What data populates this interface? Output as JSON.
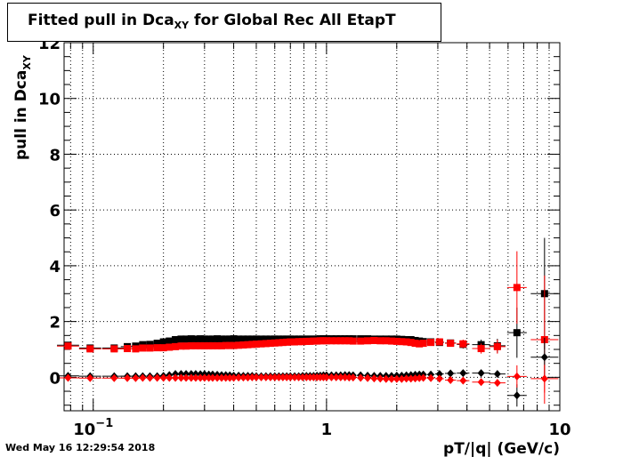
{
  "title": {
    "main": "Fitted pull in Dca",
    "sub": "XY",
    "rest": " for Global Rec All EtapT"
  },
  "timestamp": "Wed May 16 12:29:54 2018",
  "chart_data": {
    "type": "scatter",
    "title": "Fitted pull in Dca_XY for Global Rec All EtapT",
    "xlabel": "pT/|q| (GeV/c)",
    "ylabel": "pull in Dca",
    "ylabel_sub": "XY",
    "xscale": "log",
    "xlim": [
      0.075,
      10
    ],
    "ylim": [
      -1.2,
      12
    ],
    "grid": true,
    "x_tick_labels": [
      {
        "value": 0.1,
        "base": "10",
        "exp": "−1"
      },
      {
        "value": 1,
        "text": "1"
      },
      {
        "value": 10,
        "text": "10"
      }
    ],
    "y_ticks": [
      0,
      2,
      4,
      6,
      8,
      10,
      12
    ],
    "series": [
      {
        "marker": "square",
        "color": "#000000",
        "x": [
          0.078,
          0.097,
          0.123,
          0.14,
          0.152,
          0.163,
          0.175,
          0.188,
          0.2,
          0.212,
          0.225,
          0.238,
          0.25,
          0.263,
          0.275,
          0.288,
          0.3,
          0.313,
          0.325,
          0.34,
          0.355,
          0.37,
          0.385,
          0.4,
          0.42,
          0.44,
          0.46,
          0.48,
          0.5,
          0.525,
          0.55,
          0.575,
          0.6,
          0.625,
          0.65,
          0.675,
          0.7,
          0.73,
          0.76,
          0.79,
          0.82,
          0.85,
          0.88,
          0.91,
          0.94,
          0.97,
          1.0,
          1.05,
          1.1,
          1.15,
          1.2,
          1.25,
          1.3,
          1.4,
          1.5,
          1.6,
          1.7,
          1.8,
          1.9,
          2.0,
          2.1,
          2.2,
          2.3,
          2.4,
          2.5,
          2.6,
          2.8,
          3.05,
          3.4,
          3.85,
          4.6,
          5.4,
          6.55,
          8.6
        ],
        "y": [
          1.15,
          1.05,
          1.05,
          1.1,
          1.12,
          1.17,
          1.18,
          1.22,
          1.27,
          1.3,
          1.35,
          1.37,
          1.37,
          1.38,
          1.37,
          1.38,
          1.37,
          1.37,
          1.37,
          1.38,
          1.37,
          1.37,
          1.37,
          1.38,
          1.37,
          1.37,
          1.37,
          1.37,
          1.37,
          1.37,
          1.37,
          1.37,
          1.37,
          1.37,
          1.37,
          1.37,
          1.37,
          1.37,
          1.37,
          1.37,
          1.37,
          1.37,
          1.37,
          1.37,
          1.38,
          1.38,
          1.38,
          1.38,
          1.38,
          1.38,
          1.38,
          1.38,
          1.38,
          1.38,
          1.38,
          1.37,
          1.37,
          1.37,
          1.37,
          1.37,
          1.36,
          1.35,
          1.35,
          1.32,
          1.3,
          1.28,
          1.27,
          1.25,
          1.23,
          1.18,
          1.17,
          1.13,
          1.6,
          3.0
        ],
        "y_err": [
          0.05,
          0.05,
          0.04,
          0.04,
          0.04,
          0.04,
          0.04,
          0.04,
          0.04,
          0.04,
          0.04,
          0.04,
          0.04,
          0.04,
          0.04,
          0.04,
          0.04,
          0.04,
          0.04,
          0.04,
          0.04,
          0.04,
          0.04,
          0.04,
          0.04,
          0.04,
          0.04,
          0.04,
          0.04,
          0.04,
          0.04,
          0.04,
          0.04,
          0.04,
          0.04,
          0.04,
          0.04,
          0.04,
          0.04,
          0.04,
          0.04,
          0.04,
          0.04,
          0.04,
          0.04,
          0.04,
          0.04,
          0.04,
          0.04,
          0.04,
          0.04,
          0.04,
          0.04,
          0.04,
          0.04,
          0.05,
          0.05,
          0.05,
          0.05,
          0.06,
          0.06,
          0.06,
          0.07,
          0.07,
          0.08,
          0.08,
          0.09,
          0.1,
          0.12,
          0.15,
          0.18,
          0.25,
          0.9,
          2.0
        ]
      },
      {
        "marker": "square",
        "color": "#ff0000",
        "x": [
          0.078,
          0.097,
          0.123,
          0.14,
          0.152,
          0.163,
          0.175,
          0.188,
          0.2,
          0.212,
          0.225,
          0.238,
          0.25,
          0.263,
          0.275,
          0.288,
          0.3,
          0.313,
          0.325,
          0.34,
          0.355,
          0.37,
          0.385,
          0.4,
          0.42,
          0.44,
          0.46,
          0.48,
          0.5,
          0.525,
          0.55,
          0.575,
          0.6,
          0.625,
          0.65,
          0.675,
          0.7,
          0.73,
          0.76,
          0.79,
          0.82,
          0.85,
          0.88,
          0.91,
          0.94,
          0.97,
          1.0,
          1.05,
          1.1,
          1.15,
          1.2,
          1.25,
          1.3,
          1.4,
          1.5,
          1.6,
          1.7,
          1.8,
          1.9,
          2.0,
          2.1,
          2.2,
          2.3,
          2.4,
          2.5,
          2.6,
          2.8,
          3.05,
          3.4,
          3.85,
          4.6,
          5.4,
          6.55,
          8.6
        ],
        "y": [
          1.12,
          1.02,
          1.02,
          1.03,
          1.02,
          1.05,
          1.05,
          1.06,
          1.06,
          1.08,
          1.1,
          1.12,
          1.12,
          1.13,
          1.13,
          1.13,
          1.13,
          1.13,
          1.13,
          1.13,
          1.13,
          1.14,
          1.14,
          1.14,
          1.15,
          1.16,
          1.17,
          1.18,
          1.19,
          1.2,
          1.21,
          1.22,
          1.23,
          1.24,
          1.25,
          1.26,
          1.27,
          1.27,
          1.28,
          1.28,
          1.29,
          1.29,
          1.3,
          1.3,
          1.31,
          1.31,
          1.31,
          1.31,
          1.31,
          1.31,
          1.31,
          1.31,
          1.3,
          1.3,
          1.31,
          1.32,
          1.31,
          1.31,
          1.3,
          1.29,
          1.28,
          1.27,
          1.25,
          1.22,
          1.2,
          1.22,
          1.25,
          1.27,
          1.22,
          1.2,
          1.03,
          1.1,
          3.22,
          1.35
        ],
        "y_err": [
          0.05,
          0.05,
          0.04,
          0.04,
          0.04,
          0.04,
          0.04,
          0.04,
          0.04,
          0.04,
          0.04,
          0.04,
          0.04,
          0.04,
          0.04,
          0.04,
          0.04,
          0.04,
          0.04,
          0.04,
          0.04,
          0.04,
          0.04,
          0.04,
          0.04,
          0.04,
          0.04,
          0.04,
          0.04,
          0.04,
          0.04,
          0.04,
          0.04,
          0.04,
          0.04,
          0.04,
          0.04,
          0.04,
          0.04,
          0.04,
          0.04,
          0.04,
          0.04,
          0.04,
          0.04,
          0.04,
          0.04,
          0.04,
          0.04,
          0.04,
          0.04,
          0.04,
          0.04,
          0.04,
          0.04,
          0.05,
          0.05,
          0.05,
          0.05,
          0.06,
          0.06,
          0.06,
          0.07,
          0.07,
          0.08,
          0.08,
          0.09,
          0.1,
          0.12,
          0.15,
          0.18,
          0.25,
          1.3,
          2.3
        ]
      },
      {
        "marker": "diamond",
        "color": "#000000",
        "x": [
          0.078,
          0.097,
          0.123,
          0.14,
          0.152,
          0.163,
          0.175,
          0.188,
          0.2,
          0.212,
          0.225,
          0.238,
          0.25,
          0.263,
          0.275,
          0.288,
          0.3,
          0.313,
          0.325,
          0.34,
          0.355,
          0.37,
          0.385,
          0.4,
          0.42,
          0.44,
          0.46,
          0.48,
          0.5,
          0.525,
          0.55,
          0.575,
          0.6,
          0.625,
          0.65,
          0.675,
          0.7,
          0.73,
          0.76,
          0.79,
          0.82,
          0.85,
          0.88,
          0.91,
          0.94,
          0.97,
          1.0,
          1.05,
          1.1,
          1.15,
          1.2,
          1.25,
          1.3,
          1.4,
          1.5,
          1.6,
          1.7,
          1.8,
          1.9,
          2.0,
          2.1,
          2.2,
          2.3,
          2.4,
          2.5,
          2.6,
          2.8,
          3.05,
          3.4,
          3.85,
          4.6,
          5.4,
          6.55,
          8.6
        ],
        "y": [
          0.05,
          0.04,
          0.04,
          0.04,
          0.04,
          0.04,
          0.04,
          0.04,
          0.05,
          0.08,
          0.12,
          0.12,
          0.12,
          0.12,
          0.12,
          0.11,
          0.11,
          0.1,
          0.1,
          0.09,
          0.08,
          0.08,
          0.07,
          0.06,
          0.06,
          0.05,
          0.05,
          0.05,
          0.04,
          0.04,
          0.04,
          0.04,
          0.04,
          0.04,
          0.04,
          0.04,
          0.04,
          0.04,
          0.04,
          0.05,
          0.05,
          0.05,
          0.05,
          0.06,
          0.06,
          0.07,
          0.07,
          0.07,
          0.07,
          0.07,
          0.08,
          0.08,
          0.07,
          0.07,
          0.06,
          0.05,
          0.05,
          0.05,
          0.05,
          0.06,
          0.06,
          0.07,
          0.08,
          0.09,
          0.1,
          0.1,
          0.1,
          0.12,
          0.14,
          0.15,
          0.15,
          0.12,
          -0.65,
          0.72
        ],
        "y_err": [
          0.03,
          0.03,
          0.02,
          0.02,
          0.02,
          0.02,
          0.02,
          0.02,
          0.02,
          0.02,
          0.02,
          0.02,
          0.02,
          0.02,
          0.02,
          0.02,
          0.02,
          0.02,
          0.02,
          0.02,
          0.02,
          0.02,
          0.02,
          0.02,
          0.02,
          0.02,
          0.02,
          0.02,
          0.02,
          0.02,
          0.02,
          0.02,
          0.02,
          0.02,
          0.02,
          0.02,
          0.02,
          0.02,
          0.02,
          0.02,
          0.02,
          0.02,
          0.02,
          0.02,
          0.02,
          0.02,
          0.02,
          0.02,
          0.02,
          0.02,
          0.02,
          0.02,
          0.02,
          0.02,
          0.02,
          0.03,
          0.03,
          0.03,
          0.03,
          0.03,
          0.03,
          0.03,
          0.04,
          0.04,
          0.04,
          0.04,
          0.05,
          0.05,
          0.06,
          0.07,
          0.08,
          0.1,
          0.4,
          0.7
        ]
      },
      {
        "marker": "diamond",
        "color": "#ff0000",
        "x": [
          0.078,
          0.097,
          0.123,
          0.14,
          0.152,
          0.163,
          0.175,
          0.188,
          0.2,
          0.212,
          0.225,
          0.238,
          0.25,
          0.263,
          0.275,
          0.288,
          0.3,
          0.313,
          0.325,
          0.34,
          0.355,
          0.37,
          0.385,
          0.4,
          0.42,
          0.44,
          0.46,
          0.48,
          0.5,
          0.525,
          0.55,
          0.575,
          0.6,
          0.625,
          0.65,
          0.675,
          0.7,
          0.73,
          0.76,
          0.79,
          0.82,
          0.85,
          0.88,
          0.91,
          0.94,
          0.97,
          1.0,
          1.05,
          1.1,
          1.15,
          1.2,
          1.25,
          1.3,
          1.4,
          1.5,
          1.6,
          1.7,
          1.8,
          1.9,
          2.0,
          2.1,
          2.2,
          2.3,
          2.4,
          2.5,
          2.6,
          2.8,
          3.05,
          3.4,
          3.85,
          4.6,
          5.4,
          6.55,
          8.6
        ],
        "y": [
          -0.02,
          -0.03,
          -0.03,
          -0.03,
          -0.03,
          -0.02,
          -0.02,
          -0.02,
          -0.02,
          -0.02,
          -0.02,
          -0.02,
          -0.02,
          -0.02,
          -0.02,
          -0.02,
          -0.02,
          -0.02,
          -0.02,
          -0.02,
          -0.02,
          -0.02,
          -0.02,
          -0.02,
          -0.01,
          -0.01,
          -0.01,
          0.0,
          0.0,
          0.0,
          0.0,
          0.0,
          0.0,
          0.0,
          0.0,
          0.0,
          0.0,
          0.0,
          0.0,
          0.0,
          0.0,
          0.0,
          0.0,
          0.0,
          0.0,
          0.0,
          0.0,
          0.0,
          0.0,
          0.0,
          0.0,
          -0.01,
          -0.01,
          -0.02,
          -0.03,
          -0.04,
          -0.05,
          -0.06,
          -0.06,
          -0.06,
          -0.06,
          -0.05,
          -0.05,
          -0.04,
          -0.03,
          -0.02,
          -0.03,
          -0.05,
          -0.1,
          -0.12,
          -0.17,
          -0.2,
          0.03,
          -0.05
        ],
        "y_err": [
          0.03,
          0.03,
          0.02,
          0.02,
          0.02,
          0.02,
          0.02,
          0.02,
          0.02,
          0.02,
          0.02,
          0.02,
          0.02,
          0.02,
          0.02,
          0.02,
          0.02,
          0.02,
          0.02,
          0.02,
          0.02,
          0.02,
          0.02,
          0.02,
          0.02,
          0.02,
          0.02,
          0.02,
          0.02,
          0.02,
          0.02,
          0.02,
          0.02,
          0.02,
          0.02,
          0.02,
          0.02,
          0.02,
          0.02,
          0.02,
          0.02,
          0.02,
          0.02,
          0.02,
          0.02,
          0.02,
          0.02,
          0.02,
          0.02,
          0.02,
          0.02,
          0.02,
          0.02,
          0.02,
          0.02,
          0.03,
          0.03,
          0.03,
          0.03,
          0.03,
          0.03,
          0.03,
          0.04,
          0.04,
          0.04,
          0.04,
          0.05,
          0.05,
          0.06,
          0.07,
          0.08,
          0.1,
          0.4,
          0.5
        ]
      }
    ]
  }
}
